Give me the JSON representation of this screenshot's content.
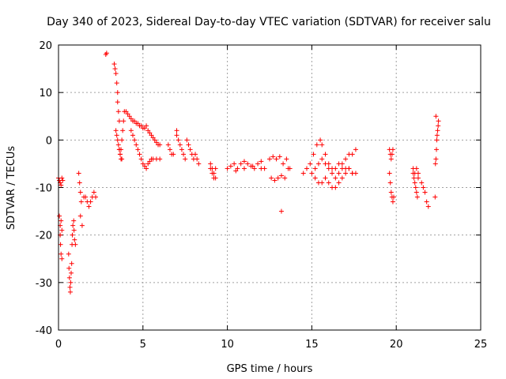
{
  "chart_data": {
    "type": "scatter",
    "title": "Day 340 of 2023, Sidereal Day-to-day VTEC variation (SDTVAR) for receiver salu",
    "xlabel": "GPS time / hours",
    "ylabel": "SDTVAR / TECUs",
    "xlim": [
      0,
      25
    ],
    "ylim": [
      -40,
      20
    ],
    "xticks": [
      0,
      5,
      10,
      15,
      20,
      25
    ],
    "yticks": [
      -40,
      -30,
      -20,
      -10,
      0,
      10,
      20
    ],
    "grid": true,
    "marker": "+",
    "color": "#ff0000",
    "series": [
      {
        "name": "SDTVAR",
        "x": [
          0.0,
          0.05,
          0.1,
          0.15,
          0.2,
          0.25,
          0.05,
          0.1,
          0.1,
          0.12,
          0.15,
          0.15,
          0.2,
          0.2,
          0.6,
          0.62,
          0.65,
          0.68,
          0.7,
          0.72,
          0.75,
          0.78,
          0.8,
          0.82,
          0.85,
          0.9,
          0.92,
          0.95,
          1.0,
          1.2,
          1.25,
          1.3,
          1.35,
          1.3,
          1.4,
          1.5,
          1.6,
          1.7,
          1.8,
          1.9,
          2.0,
          2.1,
          2.2,
          2.8,
          2.85,
          3.3,
          3.35,
          3.4,
          3.45,
          3.5,
          3.5,
          3.55,
          3.6,
          3.4,
          3.45,
          3.5,
          3.55,
          3.6,
          3.65,
          3.7,
          3.75,
          3.8,
          3.85,
          3.9,
          3.6,
          3.65,
          3.7,
          3.75,
          4.0,
          4.1,
          4.2,
          4.3,
          4.4,
          4.5,
          4.6,
          4.7,
          4.8,
          4.9,
          5.0,
          5.1,
          5.2,
          5.3,
          5.4,
          5.5,
          5.6,
          5.7,
          5.8,
          5.9,
          6.0,
          4.3,
          4.4,
          4.5,
          4.6,
          4.7,
          4.8,
          4.9,
          5.0,
          5.1,
          5.2,
          5.3,
          5.4,
          5.5,
          5.6,
          5.8,
          6.0,
          6.5,
          6.6,
          6.7,
          6.8,
          7.0,
          7.0,
          7.1,
          7.2,
          7.3,
          7.4,
          7.5,
          7.6,
          7.7,
          7.8,
          7.9,
          8.0,
          8.1,
          8.2,
          8.3,
          9.0,
          9.1,
          9.2,
          9.3,
          9.0,
          9.1,
          9.2,
          9.3,
          10.0,
          10.2,
          10.4,
          10.6,
          10.8,
          11.0,
          11.2,
          11.4,
          11.6,
          11.8,
          12.0,
          12.2,
          10.5,
          11.0,
          11.5,
          12.0,
          12.5,
          12.7,
          12.9,
          13.1,
          13.3,
          13.5,
          13.7,
          12.6,
          12.8,
          13.0,
          13.2,
          13.4,
          13.6,
          13.2,
          14.5,
          14.7,
          14.9,
          15.1,
          15.3,
          15.5,
          15.6,
          15.8,
          16.0,
          16.2,
          16.4,
          16.6,
          16.8,
          17.0,
          17.2,
          17.4,
          17.6,
          15.0,
          15.2,
          15.4,
          15.6,
          15.8,
          16.0,
          16.2,
          16.4,
          16.6,
          16.8,
          17.0,
          17.2,
          17.4,
          17.6,
          15.2,
          15.4,
          15.6,
          15.8,
          16.0,
          16.2,
          16.4,
          16.6,
          16.8,
          17.0,
          17.2,
          17.4,
          19.6,
          19.65,
          19.7,
          19.75,
          19.8,
          19.6,
          19.65,
          19.7,
          19.75,
          19.8,
          19.85,
          21.0,
          21.05,
          21.1,
          21.15,
          21.2,
          21.25,
          21.3,
          21.0,
          21.1,
          21.2,
          21.3,
          21.5,
          21.6,
          21.7,
          21.8,
          21.9,
          22.3,
          22.32,
          22.35,
          22.38,
          22.4,
          22.42,
          22.45,
          22.48,
          22.5,
          22.35
        ],
        "y": [
          -8,
          -8.5,
          -9,
          -9.5,
          -8,
          -8.5,
          -16,
          -18,
          -20,
          -22,
          -24,
          -17,
          -19,
          -25,
          -24,
          -27,
          -29,
          -31,
          -32,
          -30,
          -28,
          -26,
          -22,
          -20,
          -18,
          -17,
          -19,
          -21,
          -22,
          -7,
          -9,
          -11,
          -13,
          -16,
          -18,
          -12,
          -12,
          -13,
          -14,
          -13,
          -12,
          -11,
          -12,
          18,
          18.3,
          16,
          15,
          14,
          12,
          10,
          8,
          6,
          4,
          2,
          1,
          0,
          -1,
          -2,
          -3,
          -2,
          0,
          2,
          4,
          6,
          -2,
          -3,
          -4,
          -4,
          6,
          5.5,
          5,
          4.5,
          4,
          4,
          3.5,
          3.5,
          3,
          3,
          2.5,
          2.5,
          3,
          2,
          1.5,
          1,
          0.5,
          0,
          -0.5,
          -1,
          -1,
          2,
          1,
          0,
          -1,
          -2,
          -3,
          -4,
          -5,
          -5.5,
          -6,
          -5,
          -4.5,
          -4,
          -4,
          -4,
          -4,
          -1,
          -2,
          -3,
          -3,
          2,
          1,
          0,
          -1,
          -2,
          -3,
          -4,
          0,
          -1,
          -2,
          -3,
          -4,
          -3,
          -4,
          -5,
          -5,
          -6,
          -7,
          -8,
          -6,
          -7,
          -8,
          -6,
          -6,
          -5.5,
          -5,
          -6,
          -5,
          -4.5,
          -5,
          -5.5,
          -6,
          -5,
          -4.5,
          -6,
          -6.5,
          -6,
          -5.5,
          -6,
          -4,
          -3.5,
          -4,
          -3.5,
          -5,
          -4,
          -6,
          -8,
          -8.5,
          -8,
          -7.5,
          -8,
          -6,
          -15,
          -7,
          -6,
          -5,
          -3,
          -1,
          0,
          -1,
          -3,
          -5,
          -6,
          -6,
          -5,
          -5,
          -4,
          -3,
          -3,
          -2,
          -7,
          -6,
          -5,
          -4,
          -5,
          -6,
          -7,
          -8,
          -7,
          -6,
          -6,
          -6,
          -7,
          -7,
          -8,
          -9,
          -9,
          -8,
          -9,
          -10,
          -10,
          -9,
          -8,
          -7,
          -6,
          -7,
          -2,
          -3,
          -4,
          -3,
          -2,
          -7,
          -9,
          -11,
          -12,
          -13,
          -12,
          -7,
          -8,
          -9,
          -10,
          -11,
          -12,
          -8,
          -6,
          -7,
          -6,
          -7,
          -9,
          -10,
          -11,
          -13,
          -14,
          -12,
          -5,
          -4,
          -2,
          0,
          1,
          2,
          3,
          4,
          5
        ]
      }
    ]
  }
}
